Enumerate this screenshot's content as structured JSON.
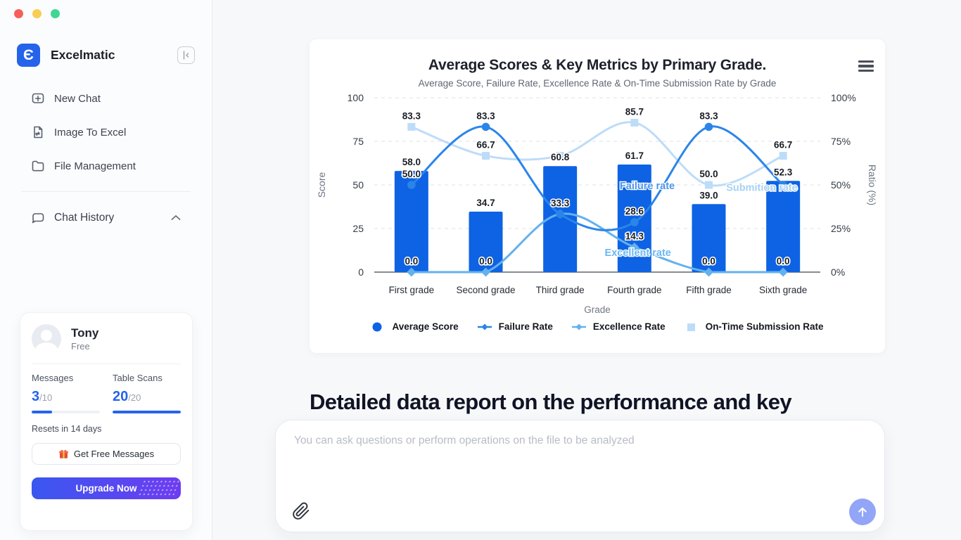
{
  "window": {
    "traffic_lights": {
      "close": "#f6605a",
      "minimize": "#f8ce52",
      "zoom": "#40d693"
    }
  },
  "sidebar": {
    "brand": {
      "name": "Excelmatic",
      "logo_glyph": "Є",
      "logo_color": "#2563eb"
    },
    "menu": [
      {
        "label": "New Chat"
      },
      {
        "label": "Image To Excel"
      },
      {
        "label": "File Management"
      }
    ],
    "chat_history": {
      "label": "Chat History"
    },
    "user_card": {
      "name": "Tony",
      "plan": "Free",
      "messages": {
        "label": "Messages",
        "used": "3",
        "total": "/10",
        "progress_pct": 30
      },
      "table_scans": {
        "label": "Table Scans",
        "used": "20",
        "total": "/20",
        "progress_pct": 100
      },
      "resets": "Resets in 14 days",
      "get_free_label": "Get Free Messages",
      "upgrade_label": "Upgrade Now",
      "accent": "#2563eb",
      "upgrade_gradient": [
        "#3a57f0",
        "#6e3cf1"
      ]
    }
  },
  "main": {
    "report_heading": "Detailed data report on the performance and key indicators of each grade in primary school.",
    "input": {
      "placeholder": "You can ask questions or perform operations on the file to be analyzed"
    }
  },
  "chart_data": {
    "type": "combo-bar-line",
    "title": "Average Scores & Key Metrics by Primary Grade.",
    "subtitle": "Average Score, Failure Rate, Excellence Rate & On-Time Submission Rate by Grade",
    "categories": [
      "First grade",
      "Second grade",
      "Third grade",
      "Fourth grade",
      "Fifth grade",
      "Sixth grade"
    ],
    "xlabel": "Grade",
    "y_left": {
      "title": "Score",
      "min": 0,
      "max": 100,
      "ticks": [
        {
          "v": 100,
          "label": "100"
        },
        {
          "v": 75,
          "label": "75"
        },
        {
          "v": 50,
          "label": "50"
        },
        {
          "v": 25,
          "label": "25"
        },
        {
          "v": 0,
          "label": "0"
        }
      ]
    },
    "y_right": {
      "title": "Ratio  (%)",
      "min": 0,
      "max": 100,
      "ticks": [
        {
          "v": 100,
          "label": "100%"
        },
        {
          "v": 75,
          "label": "75%"
        },
        {
          "v": 50,
          "label": "50%"
        },
        {
          "v": 25,
          "label": "25%"
        },
        {
          "v": 0,
          "label": "0%"
        }
      ]
    },
    "grid": true,
    "legend_position": "bottom",
    "series": [
      {
        "name": "Average Score",
        "type": "bar",
        "color": "#0d63e3",
        "values": [
          58.0,
          34.7,
          60.8,
          61.7,
          39.0,
          52.3
        ],
        "labels": [
          "58.0",
          "34.7",
          "60.8",
          "61.7",
          "39.0",
          "52.3"
        ]
      },
      {
        "name": "Failure Rate",
        "type": "line",
        "marker": "circle",
        "color": "#2b85e9",
        "values": [
          50.0,
          83.3,
          33.3,
          28.6,
          83.3,
          50.0
        ],
        "labels": [
          "50.0",
          "83.3",
          "",
          "28.6",
          "83.3",
          ""
        ]
      },
      {
        "name": "Excellence Rate",
        "type": "line",
        "marker": "diamond",
        "color": "#63b1ef",
        "values": [
          0.0,
          0.0,
          33.3,
          14.3,
          0.0,
          0.0
        ],
        "labels": [
          "0.0",
          "0.0",
          "33.3",
          "14.3",
          "0.0",
          "0.0"
        ]
      },
      {
        "name": "On-Time Submission Rate",
        "type": "line",
        "marker": "square",
        "color": "#bddcf8",
        "values": [
          83.3,
          66.7,
          66.7,
          85.7,
          50.0,
          66.7
        ],
        "labels": [
          "83.3",
          "66.7",
          "",
          "85.7",
          "50.0",
          "66.7"
        ]
      }
    ],
    "annotations": [
      {
        "text": "Failure rate",
        "color": "#4a94ec",
        "xf": 0.612,
        "v": 47.5
      },
      {
        "text": "Submition rate",
        "color": "#a7d1f4",
        "xf": 0.869,
        "v": 46.5
      },
      {
        "text": "Excellent rate",
        "color": "#6cb7f1",
        "xf": 0.591,
        "v": 9.3
      }
    ]
  }
}
